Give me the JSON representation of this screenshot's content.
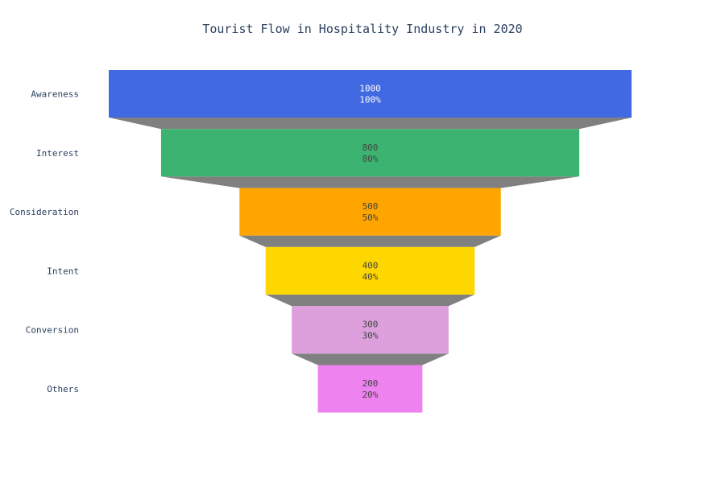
{
  "chart_data": {
    "type": "funnel",
    "title": "Tourist Flow in Hospitality Industry in 2020",
    "categories": [
      "Awareness",
      "Interest",
      "Consideration",
      "Intent",
      "Conversion",
      "Others"
    ],
    "values": [
      1000,
      800,
      500,
      400,
      300,
      200
    ],
    "percent_labels": [
      "100%",
      "80%",
      "50%",
      "40%",
      "30%",
      "20%"
    ],
    "colors": [
      "#4169e1",
      "#3cb371",
      "#ffa500",
      "#ffd700",
      "#dda0dd",
      "#ee82ee"
    ],
    "label_colors": [
      "#ffffff",
      "#444444",
      "#444444",
      "#444444",
      "#444444",
      "#444444"
    ],
    "connector_color": "#808080"
  }
}
